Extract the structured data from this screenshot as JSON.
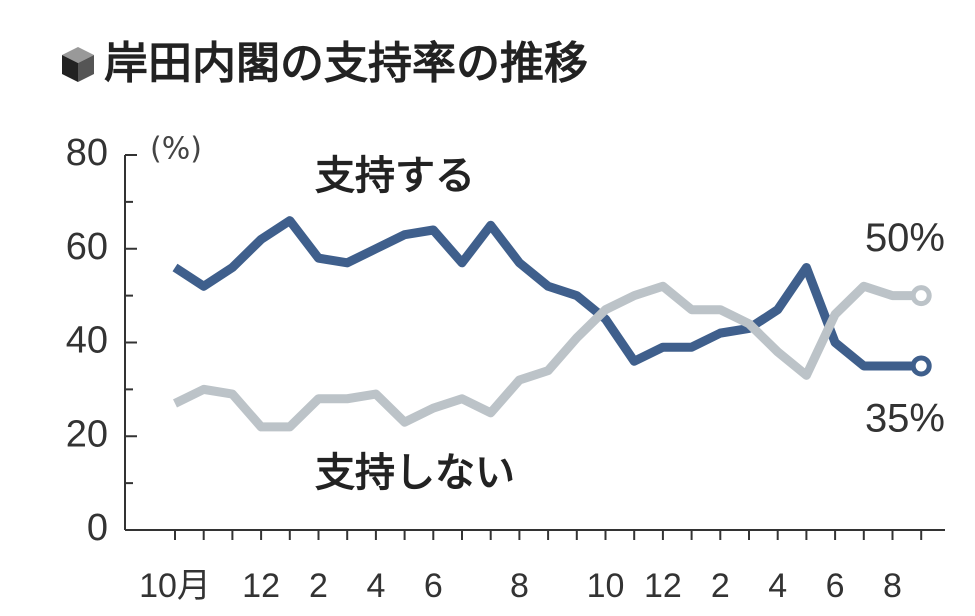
{
  "chart_data": {
    "type": "line",
    "title": "岸田内閣の支持率の推移",
    "y_unit": "(%)",
    "categories": [
      "10月",
      null,
      null,
      "12",
      null,
      "2",
      null,
      "4",
      null,
      "6",
      null,
      null,
      "8",
      null,
      null,
      "10",
      null,
      "12",
      null,
      "2",
      null,
      "4",
      null,
      "6",
      null,
      "8",
      null
    ],
    "series": [
      {
        "name": "支持する",
        "color": "#3f5f8c",
        "values": [
          56,
          52,
          56,
          62,
          66,
          58,
          57,
          60,
          63,
          64,
          57,
          65,
          57,
          52,
          50,
          45,
          36,
          39,
          39,
          42,
          43,
          47,
          56,
          40,
          35,
          35,
          35
        ],
        "value_labels": [
          null,
          null,
          null,
          null,
          null,
          null,
          null,
          null,
          null,
          null,
          null,
          null,
          null,
          null,
          null,
          null,
          null,
          null,
          null,
          null,
          null,
          null,
          null,
          null,
          null,
          null,
          "35%"
        ]
      },
      {
        "name": "支持しない",
        "color": "#bcc3c8",
        "values": [
          27,
          30,
          29,
          22,
          22,
          28,
          28,
          29,
          23,
          26,
          28,
          25,
          32,
          34,
          41,
          47,
          50,
          52,
          47,
          47,
          44,
          38,
          33,
          46,
          52,
          50,
          50
        ],
        "value_labels": [
          null,
          null,
          null,
          null,
          null,
          null,
          null,
          null,
          null,
          null,
          null,
          null,
          null,
          null,
          null,
          null,
          null,
          null,
          null,
          null,
          null,
          null,
          null,
          null,
          null,
          null,
          "50%"
        ]
      }
    ],
    "ylim": [
      0,
      80
    ],
    "yticks": [
      0,
      20,
      40,
      60,
      80
    ]
  }
}
